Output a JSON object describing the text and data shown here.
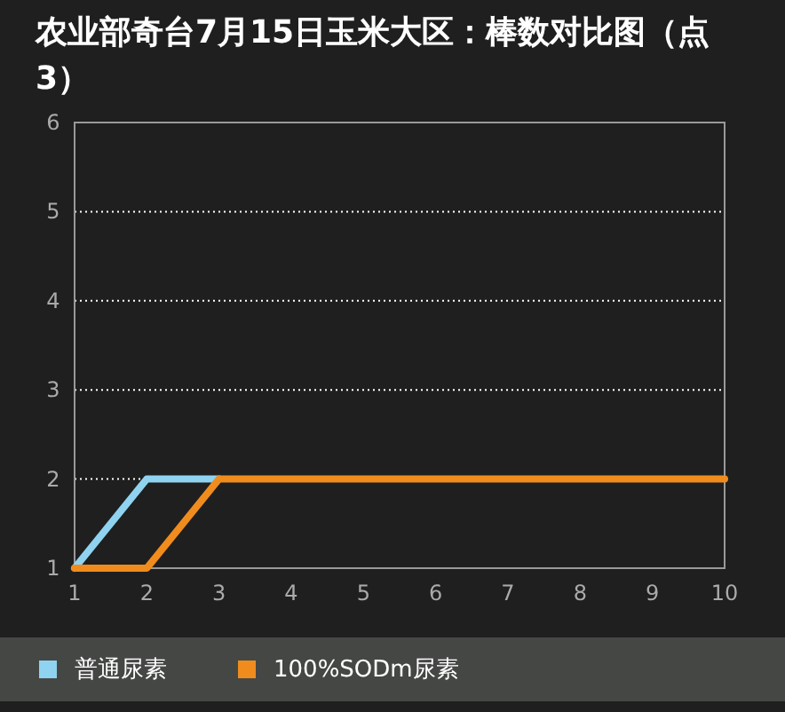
{
  "chart_data": {
    "type": "line",
    "title": "农业部奇台7月15日玉米大区：棒数对比图（点3）",
    "x": [
      1,
      2,
      3,
      4,
      5,
      6,
      7,
      8,
      9,
      10
    ],
    "series": [
      {
        "name": "普通尿素",
        "color": "#8fd3f0",
        "values": [
          1,
          2,
          2,
          null,
          null,
          null,
          null,
          null,
          null,
          null
        ]
      },
      {
        "name": "100%SODm尿素",
        "color": "#f08c1e",
        "values": [
          1,
          1,
          2,
          2,
          2,
          2,
          2,
          2,
          2,
          2
        ]
      }
    ],
    "xlim": [
      1,
      10
    ],
    "xticks": [
      1,
      2,
      3,
      4,
      5,
      6,
      7,
      8,
      9,
      10
    ],
    "ylim": [
      1,
      6
    ],
    "yticks": [
      1,
      2,
      3,
      4,
      5,
      6
    ],
    "grid": "y",
    "legend": "bottom",
    "marker": "none",
    "line_style": "solid"
  }
}
